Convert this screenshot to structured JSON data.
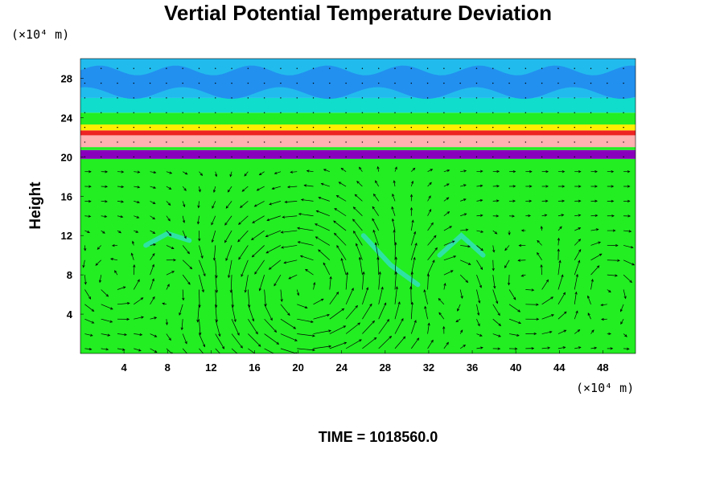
{
  "chart_data": {
    "type": "heatmap",
    "title": "Vertial Potential Temperature Deviation",
    "ylabel": "Height",
    "x_unit": "(×10⁴ m)",
    "y_unit": "(×10⁴ m)",
    "xlim": [
      0,
      51
    ],
    "ylim": [
      0,
      30
    ],
    "x_ticks": [
      "4",
      "8",
      "12",
      "16",
      "20",
      "24",
      "28",
      "32",
      "36",
      "40",
      "44",
      "48"
    ],
    "y_ticks": [
      "4",
      "8",
      "12",
      "16",
      "20",
      "24",
      "28"
    ],
    "x_tick_values": [
      4,
      8,
      12,
      16,
      20,
      24,
      28,
      32,
      36,
      40,
      44,
      48
    ],
    "y_tick_values": [
      4,
      8,
      12,
      16,
      20,
      24,
      28
    ],
    "bands": [
      {
        "from": 0,
        "to": 19.8,
        "color": "#22ee22"
      },
      {
        "from": 19.8,
        "to": 20.7,
        "color": "#8800bb"
      },
      {
        "from": 20.7,
        "to": 21.0,
        "color": "#22ee22"
      },
      {
        "from": 21.0,
        "to": 22.2,
        "color": "#ffb0b0"
      },
      {
        "from": 22.2,
        "to": 22.7,
        "color": "#ee2222"
      },
      {
        "from": 22.7,
        "to": 23.3,
        "color": "#ffee00"
      },
      {
        "from": 23.3,
        "to": 24.5,
        "color": "#22ee22"
      },
      {
        "from": 24.5,
        "to": 26.0,
        "color": "#11ddcc"
      },
      {
        "from": 26.0,
        "to": 30.0,
        "color": "#22bbee"
      }
    ],
    "blue_zone": {
      "from": 26.5,
      "to": 28.8,
      "color": "#2288ee"
    },
    "circulation_cells": [
      {
        "cx": 3.0,
        "cy": 7,
        "r": 3.5,
        "dir": 1
      },
      {
        "cx": 9.5,
        "cy": 7,
        "r": 3.5,
        "dir": -1
      },
      {
        "cx": 20.5,
        "cy": 6,
        "r": 8.5,
        "dir": 1
      },
      {
        "cx": 33.0,
        "cy": 7,
        "r": 4.0,
        "dir": -1
      },
      {
        "cx": 41.0,
        "cy": 7,
        "r": 4.0,
        "dir": 1
      },
      {
        "cx": 48.0,
        "cy": 7,
        "r": 3.5,
        "dir": -1
      }
    ]
  },
  "footer": {
    "time_label": "TIME = 1018560.0"
  }
}
